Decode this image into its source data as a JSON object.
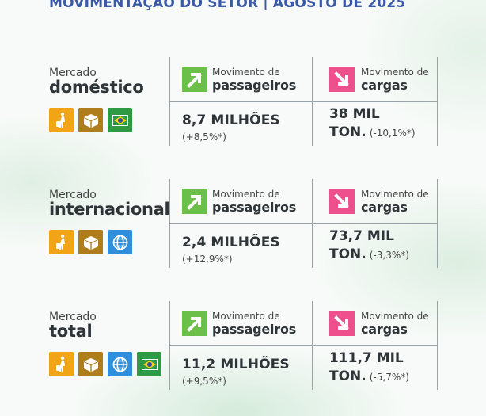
{
  "header": {
    "title": "MOVIMENTAÇÃO DO SETOR  |  AGOSTO DE 2025"
  },
  "labels": {
    "movimento_de": "Movimento de",
    "passageiros": "passageiros",
    "cargas": "cargas",
    "mercado": "Mercado"
  },
  "sections": [
    {
      "market": "doméstico",
      "icons": [
        "passenger-icon",
        "cargo-box-icon",
        "brazil-flag-icon"
      ],
      "passengers": {
        "value": "8,7 MILHÕES",
        "change": "(+8,5%*)"
      },
      "cargo": {
        "value": "38 MIL",
        "unit": "TON.",
        "change": "(-10,1%*)"
      }
    },
    {
      "market": "internacional",
      "icons": [
        "passenger-icon",
        "cargo-box-icon",
        "globe-icon"
      ],
      "passengers": {
        "value": "2,4 MILHÕES",
        "change": "(+12,9%*)"
      },
      "cargo": {
        "value": "73,7 MIL",
        "unit": "TON.",
        "change": "(-3,3%*)"
      }
    },
    {
      "market": "total",
      "icons": [
        "passenger-icon",
        "cargo-box-icon",
        "globe-icon",
        "brazil-flag-icon"
      ],
      "passengers": {
        "value": "11,2 MILHÕES",
        "change": "(+9,5%*)"
      },
      "cargo": {
        "value": "111,7 MIL",
        "unit": "TON.",
        "change": "(-5,7%*)"
      }
    }
  ],
  "colors": {
    "header": "#3a5aa8",
    "passenger_icon": "#f0a416",
    "cargo_icon": "#b07d1c",
    "flag_bg": "#2f9a44",
    "globe": "#2f8fdc",
    "arrow_up": "#6cc04a",
    "arrow_down": "#ee4f8d"
  }
}
